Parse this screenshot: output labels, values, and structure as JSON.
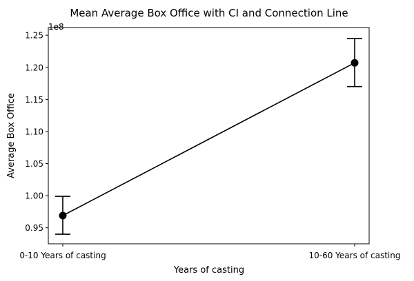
{
  "chart_data": {
    "type": "scatter",
    "title": "Mean Average Box Office with CI and Connection Line",
    "xlabel": "Years of casting",
    "ylabel": "Average Box Office",
    "offset_label": "1e8",
    "categories": [
      "0-10 Years of casting",
      "10-60 Years of casting"
    ],
    "series": [
      {
        "values": [
          0.969,
          1.207
        ],
        "ci_lower": [
          0.94,
          1.17
        ],
        "ci_upper": [
          0.999,
          1.245
        ],
        "color": "#000000",
        "connected": true
      }
    ],
    "ylim": [
      0.925,
      1.262
    ],
    "yticks": [
      0.95,
      1.0,
      1.05,
      1.1,
      1.15,
      1.2,
      1.25
    ],
    "ytick_labels": [
      "0.95",
      "1.00",
      "1.05",
      "1.10",
      "1.15",
      "1.20",
      "1.25"
    ],
    "grid": false,
    "legend": "none"
  }
}
